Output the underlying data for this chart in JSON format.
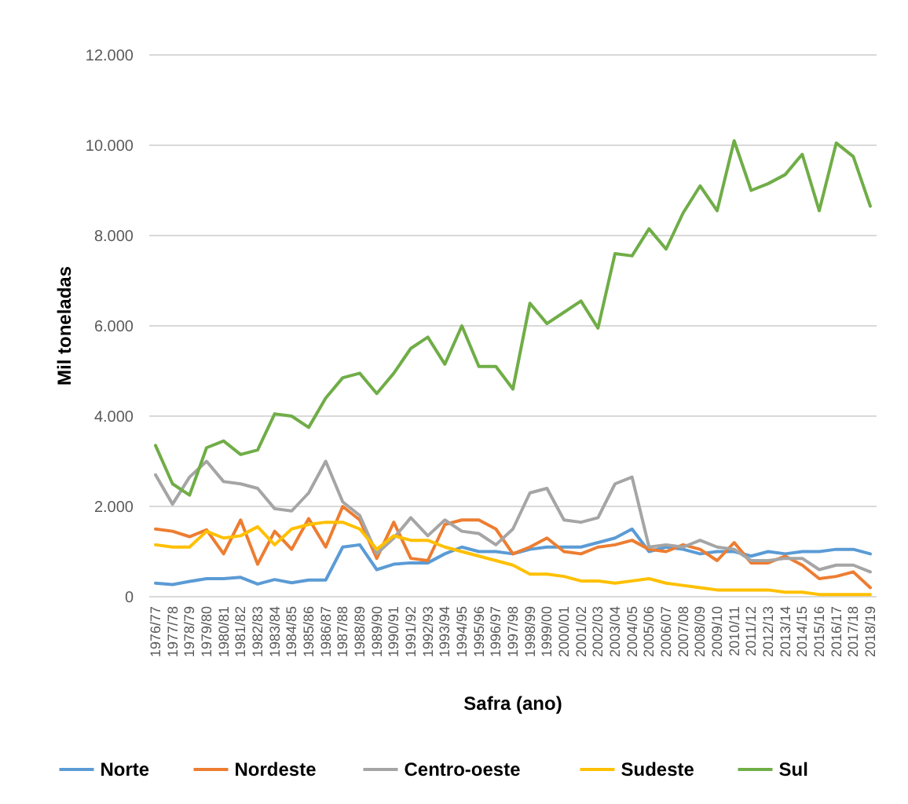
{
  "chart_data": {
    "type": "line",
    "xlabel": "Safra (ano)",
    "ylabel": "Mil toneladas",
    "categories": [
      "1976/77",
      "1977/78",
      "1978/79",
      "1979/80",
      "1980/81",
      "1981/82",
      "1982/83",
      "1983/84",
      "1984/85",
      "1985/86",
      "1986/87",
      "1987/88",
      "1988/89",
      "1989/90",
      "1990/91",
      "1991/92",
      "1992/93",
      "1993/94",
      "1994/95",
      "1995/96",
      "1996/97",
      "1997/98",
      "1998/99",
      "1999/00",
      "2000/01",
      "2001/02",
      "2002/03",
      "2003/04",
      "2004/05",
      "2005/06",
      "2006/07",
      "2007/08",
      "2008/09",
      "2009/10",
      "2010/11",
      "2011/12",
      "2012/13",
      "2013/14",
      "2014/15",
      "2015/16",
      "2016/17",
      "2017/18",
      "2018/19"
    ],
    "series": [
      {
        "name": "Norte",
        "color": "#5b9bd5",
        "values": [
          300,
          270,
          340,
          400,
          400,
          430,
          280,
          380,
          310,
          370,
          370,
          1100,
          1150,
          600,
          720,
          750,
          750,
          950,
          1100,
          1000,
          1000,
          950,
          1050,
          1100,
          1100,
          1100,
          1200,
          1300,
          1500,
          1000,
          1100,
          1050,
          950,
          1000,
          1000,
          900,
          1000,
          950,
          1000,
          1000,
          1050,
          1050,
          950
        ]
      },
      {
        "name": "Nordeste",
        "color": "#ed7d31",
        "values": [
          1500,
          1450,
          1330,
          1480,
          950,
          1700,
          720,
          1450,
          1050,
          1730,
          1100,
          2000,
          1700,
          850,
          1650,
          850,
          800,
          1600,
          1700,
          1700,
          1500,
          950,
          1100,
          1300,
          1000,
          950,
          1100,
          1150,
          1250,
          1050,
          1000,
          1150,
          1050,
          800,
          1200,
          750,
          750,
          900,
          700,
          400,
          450,
          550,
          200
        ]
      },
      {
        "name": "Centro-oeste",
        "color": "#a5a5a5",
        "values": [
          2700,
          2050,
          2650,
          3000,
          2550,
          2500,
          2400,
          1950,
          1900,
          2300,
          3000,
          2100,
          1800,
          950,
          1300,
          1750,
          1350,
          1700,
          1450,
          1400,
          1150,
          1500,
          2300,
          2400,
          1700,
          1650,
          1750,
          2500,
          2650,
          1100,
          1150,
          1100,
          1250,
          1100,
          1050,
          800,
          800,
          850,
          850,
          600,
          700,
          700,
          550
        ]
      },
      {
        "name": "Sudeste",
        "color": "#ffc000",
        "values": [
          1150,
          1100,
          1100,
          1450,
          1300,
          1350,
          1550,
          1150,
          1500,
          1600,
          1650,
          1650,
          1500,
          1050,
          1350,
          1250,
          1250,
          1100,
          1000,
          900,
          800,
          700,
          500,
          500,
          450,
          350,
          350,
          300,
          350,
          400,
          300,
          250,
          200,
          150,
          150,
          150,
          150,
          100,
          100,
          50,
          50,
          50,
          50
        ]
      },
      {
        "name": "Sul",
        "color": "#70ad47",
        "values": [
          3350,
          2500,
          2250,
          3300,
          3450,
          3150,
          3250,
          4050,
          4000,
          3750,
          4400,
          4850,
          4950,
          4500,
          4950,
          5500,
          5750,
          5150,
          6000,
          5100,
          5100,
          4600,
          6500,
          6050,
          6300,
          6550,
          5950,
          7600,
          7550,
          8150,
          7700,
          8500,
          9100,
          8550,
          10100,
          9000,
          9150,
          9350,
          9800,
          8550,
          10050,
          9750,
          8650
        ]
      }
    ],
    "ylim": [
      0,
      12000
    ],
    "yticks": [
      0,
      {
        "value": 2000,
        "label": "2.000"
      },
      {
        "value": 4000,
        "label": "4.000"
      },
      {
        "value": 6000,
        "label": "6.000"
      },
      {
        "value": 8000,
        "label": "8.000"
      },
      {
        "value": 10000,
        "label": "10.000"
      },
      {
        "value": 12000,
        "label": "12.000"
      }
    ],
    "grid": "y",
    "legend": "bottom",
    "line_style": "solid",
    "marker": "none"
  }
}
